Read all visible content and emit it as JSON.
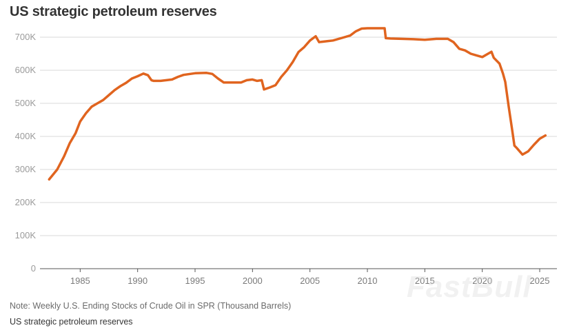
{
  "header": {
    "title": "US strategic petroleum reserves"
  },
  "footer": {
    "note": "Note: Weekly U.S. Ending Stocks of Crude Oil in SPR (Thousand Barrels)",
    "source": "US strategic petroleum reserves"
  },
  "watermark": {
    "text": "FastBull"
  },
  "colors": {
    "line": "#e0641f",
    "grid": "#d9d9d9",
    "axis": "#555555"
  },
  "chart_data": {
    "type": "line",
    "title": "US strategic petroleum reserves",
    "xlabel": "",
    "ylabel": "",
    "xlim": [
      1981.5,
      2026.5
    ],
    "ylim": [
      0,
      750000
    ],
    "grid": true,
    "legend": "none",
    "y_ticks": [
      0,
      100000,
      200000,
      300000,
      400000,
      500000,
      600000,
      700000
    ],
    "y_tick_labels": [
      "0",
      "100K",
      "200K",
      "300K",
      "400K",
      "500K",
      "600K",
      "700K"
    ],
    "x_ticks": [
      1985,
      1990,
      1995,
      2000,
      2005,
      2010,
      2015,
      2020,
      2025
    ],
    "x_tick_labels": [
      "1985",
      "1990",
      "1995",
      "2000",
      "2005",
      "2010",
      "2015",
      "2020",
      "2025"
    ],
    "series": [
      {
        "x": [
          1982.3,
          1983.0,
          1983.6,
          1984.1,
          1984.6,
          1985.0,
          1985.5,
          1986.0,
          1986.5,
          1987.0,
          1987.5,
          1988.0,
          1988.5,
          1989.0,
          1989.5,
          1990.0,
          1990.5,
          1990.9,
          1991.2,
          1991.4,
          1992.0,
          1993.0,
          1993.5,
          1994.0,
          1995.0,
          1996.0,
          1996.5,
          1997.0,
          1997.5,
          1998.0,
          1999.0,
          1999.5,
          2000.0,
          2000.4,
          2000.8,
          2001.0,
          2001.5,
          2002.0,
          2002.5,
          2003.0,
          2003.5,
          2004.0,
          2004.5,
          2005.0,
          2005.5,
          2005.8,
          2006.0,
          2006.5,
          2007.0,
          2008.0,
          2008.5,
          2009.0,
          2009.5,
          2010.0,
          2010.5,
          2011.0,
          2011.5,
          2011.6,
          2012.0,
          2013.0,
          2014.0,
          2015.0,
          2016.0,
          2017.0,
          2017.5,
          2018.0,
          2018.5,
          2019.0,
          2019.5,
          2020.0,
          2020.5,
          2020.8,
          2021.0,
          2021.5,
          2021.8,
          2022.0,
          2022.3,
          2022.6,
          2022.8,
          2023.0,
          2023.5,
          2024.0,
          2024.5,
          2025.0,
          2025.5
        ],
        "values": [
          270000,
          300000,
          340000,
          380000,
          410000,
          445000,
          470000,
          490000,
          500000,
          510000,
          525000,
          540000,
          552000,
          562000,
          575000,
          582000,
          590000,
          585000,
          570000,
          568000,
          568000,
          572000,
          580000,
          586000,
          591000,
          592000,
          589000,
          575000,
          563000,
          563000,
          563000,
          570000,
          572000,
          568000,
          570000,
          542000,
          548000,
          555000,
          580000,
          600000,
          625000,
          655000,
          670000,
          690000,
          703000,
          685000,
          686000,
          688000,
          690000,
          700000,
          705000,
          718000,
          726000,
          727000,
          727000,
          727000,
          727000,
          697000,
          696000,
          695000,
          694000,
          692000,
          695000,
          695000,
          685000,
          665000,
          660000,
          650000,
          645000,
          640000,
          650000,
          656000,
          638000,
          620000,
          590000,
          565000,
          490000,
          420000,
          372000,
          365000,
          345000,
          355000,
          375000,
          393000,
          403000
        ]
      }
    ]
  }
}
